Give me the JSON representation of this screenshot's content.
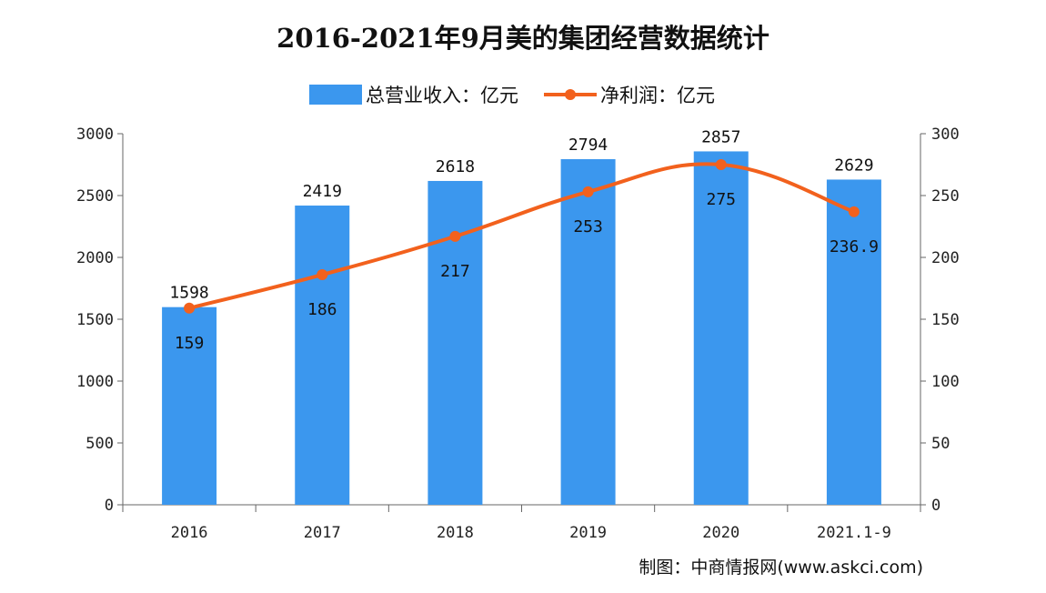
{
  "chart_data": {
    "type": "bar+line",
    "title": "2016-2021年9月美的集团经营数据统计",
    "categories": [
      "2016",
      "2017",
      "2018",
      "2019",
      "2020",
      "2021.1-9"
    ],
    "series": [
      {
        "name": "总营业收入：亿元",
        "type": "bar",
        "axis": "left",
        "values": [
          1598,
          2419,
          2618,
          2794,
          2857,
          2629
        ],
        "labels": [
          "1598",
          "2419",
          "2618",
          "2794",
          "2857",
          "2629"
        ],
        "color": "#3b97ee"
      },
      {
        "name": "净利润：亿元",
        "type": "line",
        "axis": "right",
        "values": [
          159,
          186,
          217,
          253,
          275,
          236.9
        ],
        "labels": [
          "159",
          "186",
          "217",
          "253",
          "275",
          "236.9"
        ],
        "color": "#f2611d"
      }
    ],
    "y_left": {
      "range": [
        0,
        3000
      ],
      "ticks": [
        "0",
        "500",
        "1000",
        "1500",
        "2000",
        "2500",
        "3000"
      ]
    },
    "y_right": {
      "range": [
        0,
        300
      ],
      "ticks": [
        "0",
        "50",
        "100",
        "150",
        "200",
        "250",
        "300"
      ]
    },
    "grid": false,
    "legend": "top-center"
  },
  "source": "制图：中商情报网(www.askci.com)"
}
